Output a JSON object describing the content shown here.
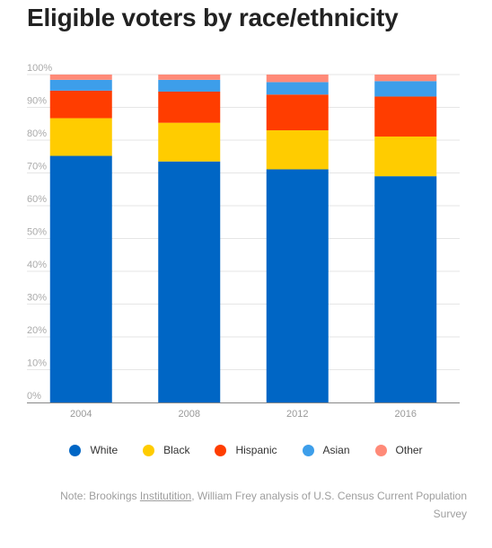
{
  "title": "Eligible voters by race/ethnicity",
  "chart_data": {
    "type": "bar",
    "stacked": true,
    "categories": [
      "2004",
      "2008",
      "2012",
      "2016"
    ],
    "series": [
      {
        "name": "White",
        "color": "#0066c5",
        "values": [
          75.2,
          73.5,
          71.1,
          69.0
        ]
      },
      {
        "name": "Black",
        "color": "#ffcc00",
        "values": [
          11.5,
          11.8,
          11.9,
          12.1
        ]
      },
      {
        "name": "Hispanic",
        "color": "#ff3d00",
        "values": [
          8.4,
          9.5,
          10.9,
          12.2
        ]
      },
      {
        "name": "Asian",
        "color": "#3d9eea",
        "values": [
          3.3,
          3.6,
          3.8,
          4.7
        ]
      },
      {
        "name": "Other",
        "color": "#ff8a78",
        "values": [
          1.6,
          1.6,
          2.3,
          2.0
        ]
      }
    ],
    "ylim": [
      0,
      100
    ],
    "y_ticks": [
      "0%",
      "10%",
      "20%",
      "30%",
      "40%",
      "50%",
      "60%",
      "70%",
      "80%",
      "90%",
      "100%"
    ],
    "grid": true,
    "legend_position": "bottom"
  },
  "note": {
    "prefix": "Note: Brookings ",
    "underlined": "Institutition",
    "suffix": ", William Frey analysis of U.S. Census Current Population Survey"
  }
}
